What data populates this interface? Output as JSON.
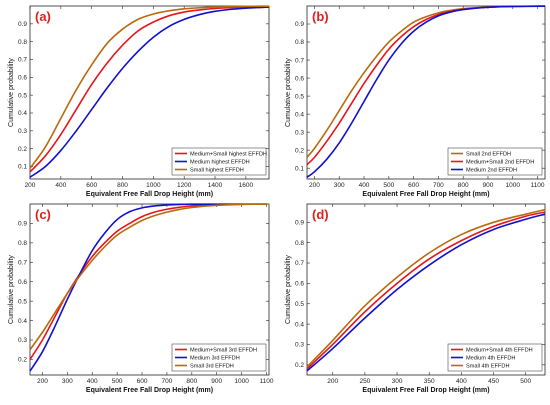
{
  "chart_data": [
    {
      "type": "line",
      "panel_label": "(a)",
      "xlabel": "Equivalent Free Fall Drop Height (mm)",
      "ylabel": "Cumulative probability",
      "xlim": [
        200,
        1750
      ],
      "ylim": [
        0.03,
        1.0
      ],
      "xticks": [
        200,
        400,
        600,
        800,
        1000,
        1200,
        1400,
        1600
      ],
      "yticks": [
        0.1,
        0.2,
        0.3,
        0.4,
        0.5,
        0.6,
        0.7,
        0.8,
        0.9
      ],
      "legend_position": "bottom-right",
      "x": [
        200,
        300,
        400,
        500,
        600,
        700,
        800,
        900,
        1000,
        1100,
        1200,
        1300,
        1400,
        1500,
        1600,
        1700,
        1750
      ],
      "series": [
        {
          "name": "Medium+Small highest EFFDH",
          "color": "#e8141c",
          "values": [
            0.07,
            0.16,
            0.28,
            0.42,
            0.56,
            0.68,
            0.78,
            0.86,
            0.91,
            0.945,
            0.966,
            0.978,
            0.986,
            0.991,
            0.994,
            0.996,
            0.997
          ]
        },
        {
          "name": "Medium highest EFFDH",
          "color": "#1010d0",
          "values": [
            0.04,
            0.1,
            0.19,
            0.3,
            0.42,
            0.54,
            0.65,
            0.745,
            0.825,
            0.885,
            0.925,
            0.952,
            0.97,
            0.981,
            0.988,
            0.992,
            0.994
          ]
        },
        {
          "name": "Small highest EFFDH",
          "color": "#b86a0c",
          "values": [
            0.09,
            0.21,
            0.37,
            0.53,
            0.67,
            0.79,
            0.87,
            0.925,
            0.955,
            0.973,
            0.984,
            0.99,
            0.994,
            0.996,
            0.998,
            0.999,
            0.999
          ]
        }
      ]
    },
    {
      "type": "line",
      "panel_label": "(b)",
      "xlabel": "Equivalent Free Fall Drop Height (mm)",
      "ylabel": "Cumulative probability",
      "xlim": [
        170,
        1130
      ],
      "ylim": [
        0.04,
        1.0
      ],
      "xticks": [
        200,
        300,
        400,
        500,
        600,
        700,
        800,
        900,
        1000,
        1100
      ],
      "yticks": [
        0.1,
        0.2,
        0.3,
        0.4,
        0.5,
        0.6,
        0.7,
        0.8,
        0.9
      ],
      "legend_position": "bottom-right",
      "x": [
        170,
        200,
        250,
        300,
        350,
        400,
        450,
        500,
        550,
        600,
        650,
        700,
        750,
        800,
        900,
        1000,
        1130
      ],
      "series": [
        {
          "name": "Small 2nd EFFDH",
          "color": "#b86a0c",
          "values": [
            0.16,
            0.21,
            0.31,
            0.42,
            0.53,
            0.63,
            0.72,
            0.8,
            0.86,
            0.91,
            0.94,
            0.962,
            0.976,
            0.985,
            0.994,
            0.998,
            0.999
          ]
        },
        {
          "name": "Medium+Small 2nd EFFDH",
          "color": "#e8141c",
          "values": [
            0.12,
            0.16,
            0.25,
            0.35,
            0.46,
            0.57,
            0.67,
            0.76,
            0.83,
            0.885,
            0.925,
            0.953,
            0.97,
            0.982,
            0.993,
            0.997,
            0.999
          ]
        },
        {
          "name": "Medium 2nd EFFDH",
          "color": "#1010d0",
          "values": [
            0.05,
            0.08,
            0.15,
            0.24,
            0.35,
            0.47,
            0.59,
            0.7,
            0.79,
            0.86,
            0.91,
            0.945,
            0.967,
            0.98,
            0.993,
            0.998,
            0.999
          ]
        }
      ]
    },
    {
      "type": "line",
      "panel_label": "(c)",
      "xlabel": "Equivalent Free Fall Drop Height (mm)",
      "ylabel": "Cumulative probability",
      "xlim": [
        150,
        1110
      ],
      "ylim": [
        0.12,
        1.0
      ],
      "xticks": [
        200,
        300,
        400,
        500,
        600,
        700,
        800,
        900,
        1000,
        1100
      ],
      "yticks": [
        0.2,
        0.3,
        0.4,
        0.5,
        0.6,
        0.7,
        0.8,
        0.9
      ],
      "legend_position": "bottom-right",
      "x": [
        150,
        200,
        250,
        300,
        350,
        400,
        450,
        500,
        550,
        600,
        650,
        700,
        750,
        800,
        900,
        1000,
        1100
      ],
      "series": [
        {
          "name": "Medium+Small 3rd EFFDH",
          "color": "#e8141c",
          "values": [
            0.2,
            0.3,
            0.42,
            0.54,
            0.64,
            0.73,
            0.8,
            0.86,
            0.9,
            0.935,
            0.958,
            0.973,
            0.983,
            0.99,
            0.996,
            0.999,
            0.999
          ]
        },
        {
          "name": "Medium 3rd EFFDH",
          "color": "#1010d0",
          "values": [
            0.14,
            0.24,
            0.37,
            0.51,
            0.64,
            0.76,
            0.85,
            0.92,
            0.96,
            0.98,
            0.99,
            0.995,
            0.998,
            0.999,
            0.999,
            0.999,
            0.999
          ]
        },
        {
          "name": "Small 3rd EFFDH",
          "color": "#b86a0c",
          "values": [
            0.25,
            0.34,
            0.44,
            0.54,
            0.63,
            0.71,
            0.78,
            0.84,
            0.88,
            0.915,
            0.94,
            0.958,
            0.972,
            0.982,
            0.993,
            0.998,
            0.999
          ]
        }
      ]
    },
    {
      "type": "line",
      "panel_label": "(d)",
      "xlabel": "Equivalent Free Fall Drop Height (mm)",
      "ylabel": "Cumulative probability",
      "xlim": [
        160,
        530
      ],
      "ylim": [
        0.15,
        0.99
      ],
      "xticks": [
        200,
        250,
        300,
        350,
        400,
        450,
        500
      ],
      "yticks": [
        0.2,
        0.3,
        0.4,
        0.5,
        0.6,
        0.7,
        0.8,
        0.9
      ],
      "legend_position": "bottom-right",
      "x": [
        160,
        200,
        250,
        300,
        350,
        400,
        450,
        500,
        530
      ],
      "series": [
        {
          "name": "Medium+Small 4th EFFDH",
          "color": "#e8141c",
          "values": [
            0.18,
            0.3,
            0.46,
            0.6,
            0.72,
            0.81,
            0.88,
            0.93,
            0.95
          ]
        },
        {
          "name": "Medium 4th EFFDH",
          "color": "#1010d0",
          "values": [
            0.17,
            0.28,
            0.43,
            0.57,
            0.69,
            0.79,
            0.865,
            0.915,
            0.94
          ]
        },
        {
          "name": "Small 4th EFFDH",
          "color": "#b86a0c",
          "values": [
            0.19,
            0.32,
            0.49,
            0.63,
            0.75,
            0.84,
            0.9,
            0.94,
            0.962
          ]
        }
      ]
    }
  ]
}
